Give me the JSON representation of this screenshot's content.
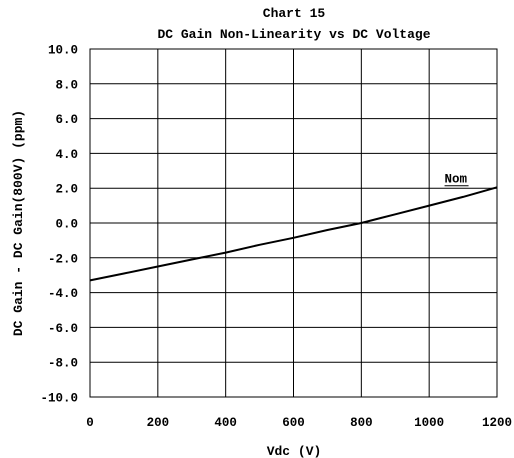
{
  "chart_data": {
    "type": "line",
    "title": "Chart 15",
    "subtitle": "DC Gain Non-Linearity vs DC Voltage",
    "xlabel": "Vdc (V)",
    "ylabel": "DC Gain - DC Gain(800V) (ppm)",
    "xlim": [
      0,
      1200
    ],
    "ylim": [
      -10,
      10
    ],
    "x_ticks": [
      0,
      200,
      400,
      600,
      800,
      1000,
      1200
    ],
    "x_tick_labels": [
      "0",
      "200",
      "400",
      "600",
      "800",
      "1000",
      "1200"
    ],
    "y_ticks": [
      10,
      8,
      6,
      4,
      2,
      0,
      -2,
      -4,
      -6,
      -8,
      -10
    ],
    "y_tick_labels": [
      "10.0",
      "8.0",
      "6.0",
      "4.0",
      "2.0",
      "0.0",
      "-2.0",
      "-4.0",
      "-6.0",
      "-8.0",
      "-10.0"
    ],
    "grid": true,
    "series": [
      {
        "name": "Nom",
        "color": "#000000",
        "x": [
          0,
          100,
          200,
          300,
          400,
          500,
          600,
          700,
          800,
          900,
          1000,
          1100,
          1200
        ],
        "y": [
          -3.3,
          -2.9,
          -2.5,
          -2.1,
          -1.7,
          -1.25,
          -0.85,
          -0.4,
          0.0,
          0.5,
          1.0,
          1.5,
          2.05
        ]
      }
    ],
    "annotations": [
      {
        "text": "Nom",
        "x": 1010,
        "y": 2.2
      }
    ]
  }
}
